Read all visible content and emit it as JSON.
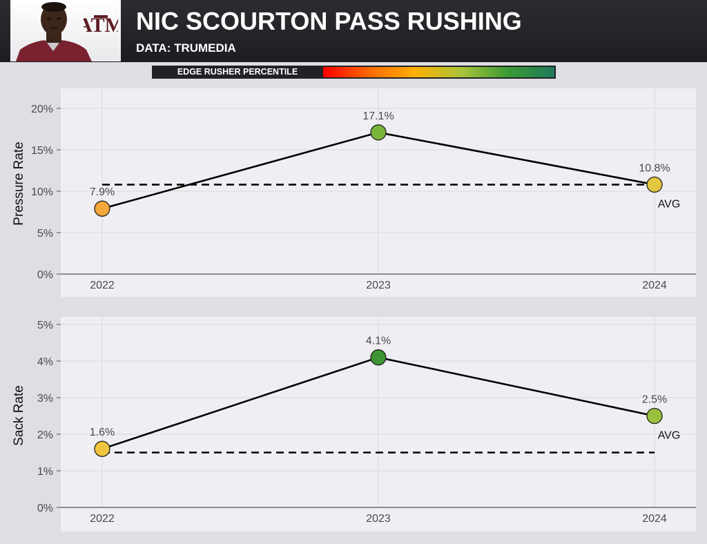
{
  "header": {
    "title": "NIC SCOURTON PASS RUSHING",
    "subtitle": "DATA: TRUMEDIA",
    "logo_text": "ATM",
    "accent_color": "#5b1a22"
  },
  "legend": {
    "label": "EDGE RUSHER PERCENTILE",
    "colors": [
      "#ff0000",
      "#ff6a00",
      "#ffb000",
      "#a8c43a",
      "#3a9a34",
      "#1e7a5a"
    ]
  },
  "chart_data": [
    {
      "type": "line",
      "ylabel": "Pressure Rate",
      "x": [
        "2022",
        "2023",
        "2024"
      ],
      "values": [
        7.9,
        17.1,
        10.8
      ],
      "labels": [
        "7.9%",
        "17.1%",
        "10.8%"
      ],
      "point_colors": [
        "#f4a73b",
        "#7ab53c",
        "#e2c63e"
      ],
      "average": 10.8,
      "avg_label": "AVG",
      "ylim": [
        0,
        20
      ],
      "yticks": [
        0,
        5,
        10,
        15,
        20
      ],
      "ytick_labels": [
        "0%",
        "5%",
        "10%",
        "15%",
        "20%"
      ],
      "grid": true
    },
    {
      "type": "line",
      "ylabel": "Sack Rate",
      "x": [
        "2022",
        "2023",
        "2024"
      ],
      "values": [
        1.6,
        4.1,
        2.5
      ],
      "labels": [
        "1.6%",
        "4.1%",
        "2.5%"
      ],
      "point_colors": [
        "#f1c53d",
        "#3e9434",
        "#9bc03d"
      ],
      "average": 1.5,
      "avg_label": "AVG",
      "ylim": [
        0,
        5
      ],
      "yticks": [
        0,
        1,
        2,
        3,
        4,
        5
      ],
      "ytick_labels": [
        "0%",
        "1%",
        "2%",
        "3%",
        "4%",
        "5%"
      ],
      "grid": true
    }
  ]
}
